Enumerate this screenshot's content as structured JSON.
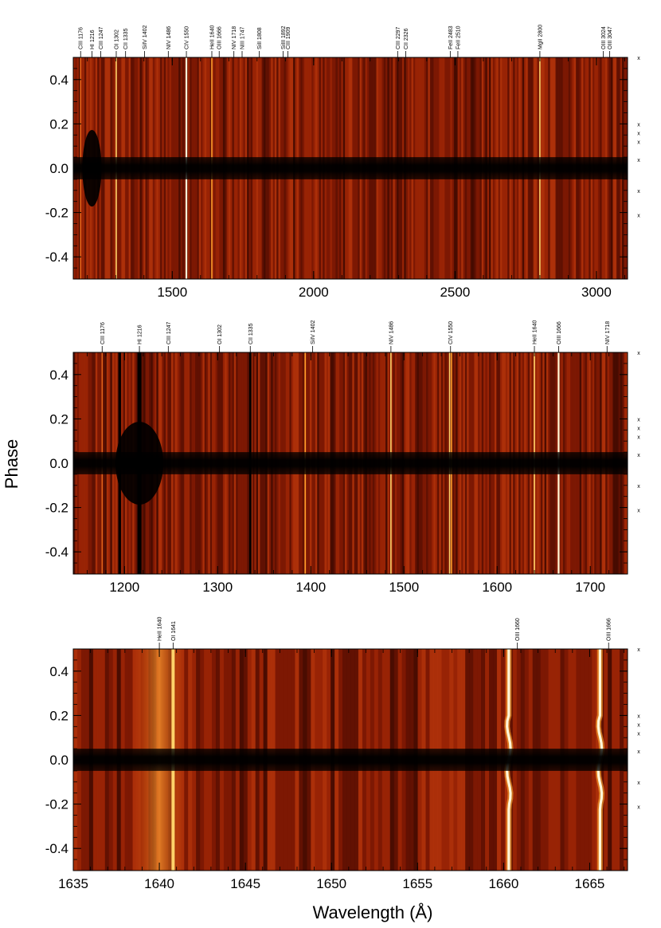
{
  "chart_data": [
    {
      "type": "heatmap",
      "title": "",
      "xlabel": "",
      "ylabel": "",
      "xlim": [
        1150,
        3110
      ],
      "ylim": [
        -0.5,
        0.5
      ],
      "x_ticks": [
        1500,
        2000,
        2500,
        3000
      ],
      "x_tick_labels": [
        "1500",
        "2000",
        "2500",
        "3000"
      ],
      "y_ticks": [
        -0.4,
        -0.2,
        0.0,
        0.2,
        0.4
      ],
      "y_tick_labels": [
        "-0.4",
        "-0.2",
        "0.0",
        "0.2",
        "0.4"
      ],
      "line_labels": [
        {
          "wavelength": 1176,
          "label": "CIII 1176"
        },
        {
          "wavelength": 1216,
          "label": "HI 1216"
        },
        {
          "wavelength": 1247,
          "label": "CIII 1247"
        },
        {
          "wavelength": 1302,
          "label": "OI 1302"
        },
        {
          "wavelength": 1335,
          "label": "CII 1335"
        },
        {
          "wavelength": 1402,
          "label": "SiIV 1402"
        },
        {
          "wavelength": 1486,
          "label": "NIV 1486"
        },
        {
          "wavelength": 1550,
          "label": "CIV 1550"
        },
        {
          "wavelength": 1640,
          "label": "HeII 1640"
        },
        {
          "wavelength": 1666,
          "label": "OIII 1666"
        },
        {
          "wavelength": 1718,
          "label": "NIV 1718"
        },
        {
          "wavelength": 1747,
          "label": "NIII 1747"
        },
        {
          "wavelength": 1808,
          "label": "SiII 1808"
        },
        {
          "wavelength": 1892,
          "label": "SiIII 1892"
        },
        {
          "wavelength": 1909,
          "label": "CIII 1909"
        },
        {
          "wavelength": 2297,
          "label": "CIII 2297"
        },
        {
          "wavelength": 2326,
          "label": "CII 2326"
        },
        {
          "wavelength": 2483,
          "label": "FeII 2483"
        },
        {
          "wavelength": 2510,
          "label": "FeII 2510"
        },
        {
          "wavelength": 2800,
          "label": "MgII 2800"
        },
        {
          "wavelength": 3024,
          "label": "OIII 3024"
        },
        {
          "wavelength": 3047,
          "label": "OIII 3047"
        }
      ],
      "bright_lines": [
        {
          "wavelength": 1176,
          "strength": 0.55
        },
        {
          "wavelength": 1302,
          "strength": 0.85
        },
        {
          "wavelength": 1550,
          "strength": 1.0
        },
        {
          "wavelength": 1640,
          "strength": 0.75
        },
        {
          "wavelength": 2800,
          "strength": 0.8
        }
      ],
      "dark_core_phase": [
        -0.05,
        0.05
      ],
      "phase_markers": [
        0.5,
        0.2,
        0.16,
        0.12,
        0.04,
        -0.1,
        -0.21
      ]
    },
    {
      "type": "heatmap",
      "title": "",
      "xlabel": "",
      "ylabel": "Phase",
      "xlim": [
        1145,
        1740
      ],
      "ylim": [
        -0.5,
        0.5
      ],
      "x_ticks": [
        1200,
        1300,
        1400,
        1500,
        1600,
        1700
      ],
      "x_tick_labels": [
        "1200",
        "1300",
        "1400",
        "1500",
        "1600",
        "1700"
      ],
      "y_ticks": [
        -0.4,
        -0.2,
        0.0,
        0.2,
        0.4
      ],
      "y_tick_labels": [
        "-0.4",
        "-0.2",
        "0.0",
        "0.2",
        "0.4"
      ],
      "line_labels": [
        {
          "wavelength": 1176,
          "label": "CIII 1176"
        },
        {
          "wavelength": 1216,
          "label": "HI 1216"
        },
        {
          "wavelength": 1247,
          "label": "CIII 1247"
        },
        {
          "wavelength": 1302,
          "label": "OI 1302"
        },
        {
          "wavelength": 1335,
          "label": "CII 1335"
        },
        {
          "wavelength": 1402,
          "label": "SiIV 1402"
        },
        {
          "wavelength": 1486,
          "label": "NIV 1486"
        },
        {
          "wavelength": 1550,
          "label": "CIV 1550"
        },
        {
          "wavelength": 1640,
          "label": "HeII 1640"
        },
        {
          "wavelength": 1666,
          "label": "OIII 1666"
        },
        {
          "wavelength": 1718,
          "label": "NIV 1718"
        }
      ],
      "bright_lines": [
        {
          "wavelength": 1176,
          "strength": 0.5
        },
        {
          "wavelength": 1394,
          "strength": 0.75
        },
        {
          "wavelength": 1486,
          "strength": 0.8
        },
        {
          "wavelength": 1549,
          "strength": 0.85
        },
        {
          "wavelength": 1551,
          "strength": 0.7
        },
        {
          "wavelength": 1640,
          "strength": 0.8
        },
        {
          "wavelength": 1666,
          "strength": 0.95
        }
      ],
      "dark_lines": [
        1195,
        1216,
        1335
      ],
      "dark_core_phase": [
        -0.05,
        0.05
      ],
      "phase_markers": [
        0.5,
        0.2,
        0.16,
        0.12,
        0.04,
        -0.1,
        -0.21
      ]
    },
    {
      "type": "heatmap",
      "title": "",
      "xlabel": "Wavelength (Å)",
      "ylabel": "",
      "xlim": [
        1635,
        1667.2
      ],
      "ylim": [
        -0.5,
        0.5
      ],
      "x_ticks": [
        1635,
        1640,
        1645,
        1650,
        1655,
        1660,
        1665
      ],
      "x_tick_labels": [
        "1635",
        "1640",
        "1645",
        "1650",
        "1655",
        "1660",
        "1665"
      ],
      "y_ticks": [
        -0.4,
        -0.2,
        0.0,
        0.2,
        0.4
      ],
      "y_tick_labels": [
        "-0.4",
        "-0.2",
        "0.0",
        "0.2",
        "0.4"
      ],
      "line_labels": [
        {
          "wavelength": 1640.0,
          "label": "HeII 1640"
        },
        {
          "wavelength": 1640.8,
          "label": "OI 1641"
        },
        {
          "wavelength": 1660.8,
          "label": "OIII 1660"
        },
        {
          "wavelength": 1666.1,
          "label": "OIII 1666"
        }
      ],
      "bright_lines": [
        {
          "wavelength": 1640.0,
          "strength": 0.7,
          "broad": true
        },
        {
          "wavelength": 1640.8,
          "strength": 0.8
        },
        {
          "wavelength": 1660.3,
          "strength": 1.0,
          "wiggle": true
        },
        {
          "wavelength": 1665.6,
          "strength": 1.0,
          "wiggle": true
        }
      ],
      "dark_core_phase": [
        -0.05,
        0.05
      ],
      "phase_markers": [
        0.5,
        0.2,
        0.16,
        0.12,
        0.04,
        -0.1,
        -0.21
      ]
    }
  ]
}
